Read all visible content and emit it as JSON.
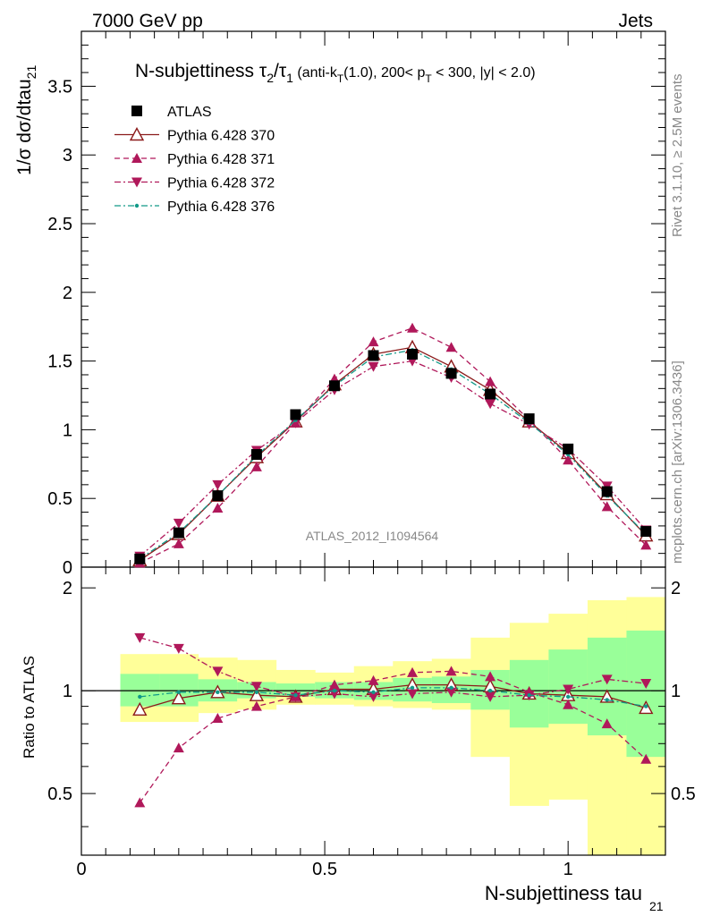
{
  "header": {
    "left": "7000 GeV pp",
    "right": "Jets"
  },
  "side_labels": {
    "rivet": "Rivet 3.1.10, ≥ 2.5M events",
    "mcplots": "mcplots.cern.ch [arXiv:1306.3436]"
  },
  "plot_title": {
    "main": "N-subjettiness τ",
    "sub2": "2",
    "slash": "/τ",
    "sub1": "1",
    "cuts_a": " (anti-k",
    "cuts_T": "T",
    "cuts_b": "(1.0), 200< p",
    "cuts_T2": "T",
    "cuts_c": " < 300, |y| < 2.0)"
  },
  "watermark": "ATLAS_2012_I1094564",
  "y_axis_main": {
    "label": "1/σ dσ/dtau",
    "label_sub": "21",
    "ticks": [
      "0",
      "0.5",
      "1",
      "1.5",
      "2",
      "2.5",
      "3",
      "3.5"
    ]
  },
  "y_axis_ratio": {
    "label": "Ratio to ATLAS",
    "ticks_left": [
      "0.5",
      "1",
      "2"
    ],
    "ticks_right": [
      "0.5",
      "1",
      "2"
    ]
  },
  "x_axis": {
    "label": "N-subjettiness tau",
    "label_sub": "21",
    "ticks": [
      "0",
      "0.5",
      "1"
    ]
  },
  "chart_data": {
    "type": "scatter",
    "title": "N-subjettiness τ₂/τ₁ (anti-kT(1.0), 200< pT < 300, |y| < 2.0)",
    "xlabel": "N-subjettiness tau21",
    "ylabel": "1/σ dσ/dtau21",
    "xlim": [
      0,
      1.2
    ],
    "ylim": [
      0,
      3.9
    ],
    "ratio_ylim": [
      0.33,
      2.3
    ],
    "ratio_scale": "log",
    "x": [
      0.12,
      0.2,
      0.28,
      0.36,
      0.44,
      0.52,
      0.6,
      0.68,
      0.76,
      0.84,
      0.92,
      1.0,
      1.08,
      1.16
    ],
    "legend_position": "top-left",
    "series": [
      {
        "name": "ATLAS",
        "color": "#000000",
        "style": "data",
        "marker": "square",
        "values": [
          0.06,
          0.25,
          0.52,
          0.82,
          1.11,
          1.32,
          1.54,
          1.55,
          1.41,
          1.26,
          1.08,
          0.86,
          0.55,
          0.26
        ]
      },
      {
        "name": "Pythia 6.428 370",
        "color": "#8b1a1a",
        "style": "solid",
        "marker": "triangle-open",
        "values": [
          0.05,
          0.24,
          0.52,
          0.8,
          1.06,
          1.33,
          1.55,
          1.6,
          1.46,
          1.29,
          1.06,
          0.83,
          0.53,
          0.23
        ]
      },
      {
        "name": "Pythia 6.428 371",
        "color": "#b0185a",
        "style": "dashed",
        "marker": "triangle-up",
        "values": [
          0.03,
          0.17,
          0.43,
          0.73,
          1.05,
          1.37,
          1.64,
          1.74,
          1.6,
          1.35,
          1.07,
          0.78,
          0.44,
          0.16
        ]
      },
      {
        "name": "Pythia 6.428 372",
        "color": "#b0185a",
        "style": "dashdot",
        "marker": "triangle-down",
        "values": [
          0.08,
          0.32,
          0.6,
          0.85,
          1.05,
          1.29,
          1.46,
          1.5,
          1.38,
          1.19,
          1.04,
          0.86,
          0.59,
          0.27
        ]
      },
      {
        "name": "Pythia 6.428 376",
        "color": "#119988",
        "style": "dashdot",
        "marker": "dot",
        "values": [
          0.06,
          0.25,
          0.52,
          0.81,
          1.07,
          1.32,
          1.53,
          1.58,
          1.44,
          1.26,
          1.05,
          0.82,
          0.52,
          0.24
        ]
      }
    ],
    "ratio": {
      "Pythia 6.428 370": [
        0.88,
        0.95,
        0.99,
        0.97,
        0.96,
        1.01,
        1.01,
        1.04,
        1.04,
        1.03,
        0.98,
        0.97,
        0.96,
        0.89
      ],
      "Pythia 6.428 371": [
        0.47,
        0.68,
        0.83,
        0.9,
        0.96,
        1.04,
        1.07,
        1.13,
        1.14,
        1.1,
        0.99,
        0.91,
        0.8,
        0.63
      ],
      "Pythia 6.428 372": [
        1.43,
        1.33,
        1.14,
        1.03,
        0.96,
        0.98,
        0.96,
        0.98,
        0.99,
        0.96,
        0.97,
        1.01,
        1.08,
        1.05
      ],
      "Pythia 6.428 376": [
        0.96,
        0.99,
        0.99,
        0.99,
        0.97,
        1.0,
        0.99,
        1.02,
        1.02,
        1.0,
        0.97,
        0.96,
        0.94,
        0.9
      ]
    },
    "bands": {
      "edges": [
        0.08,
        0.16,
        0.24,
        0.32,
        0.4,
        0.48,
        0.56,
        0.64,
        0.72,
        0.8,
        0.88,
        0.96,
        1.04,
        1.12,
        1.2
      ],
      "inner_lo": [
        0.9,
        0.9,
        0.93,
        0.95,
        0.96,
        0.95,
        0.94,
        0.93,
        0.92,
        0.88,
        0.78,
        0.8,
        0.74,
        0.64
      ],
      "inner_hi": [
        1.12,
        1.12,
        1.08,
        1.06,
        1.05,
        1.06,
        1.06,
        1.09,
        1.1,
        1.15,
        1.23,
        1.32,
        1.43,
        1.5
      ],
      "outer_lo": [
        0.81,
        0.81,
        0.86,
        0.88,
        0.91,
        0.91,
        0.9,
        0.89,
        0.88,
        0.64,
        0.46,
        0.48,
        0.33,
        0.33
      ],
      "outer_hi": [
        1.28,
        1.28,
        1.25,
        1.23,
        1.15,
        1.13,
        1.18,
        1.22,
        1.24,
        1.43,
        1.58,
        1.68,
        1.84,
        1.88
      ],
      "inner_color": "#99ff99",
      "outer_color": "#ffff99"
    }
  }
}
